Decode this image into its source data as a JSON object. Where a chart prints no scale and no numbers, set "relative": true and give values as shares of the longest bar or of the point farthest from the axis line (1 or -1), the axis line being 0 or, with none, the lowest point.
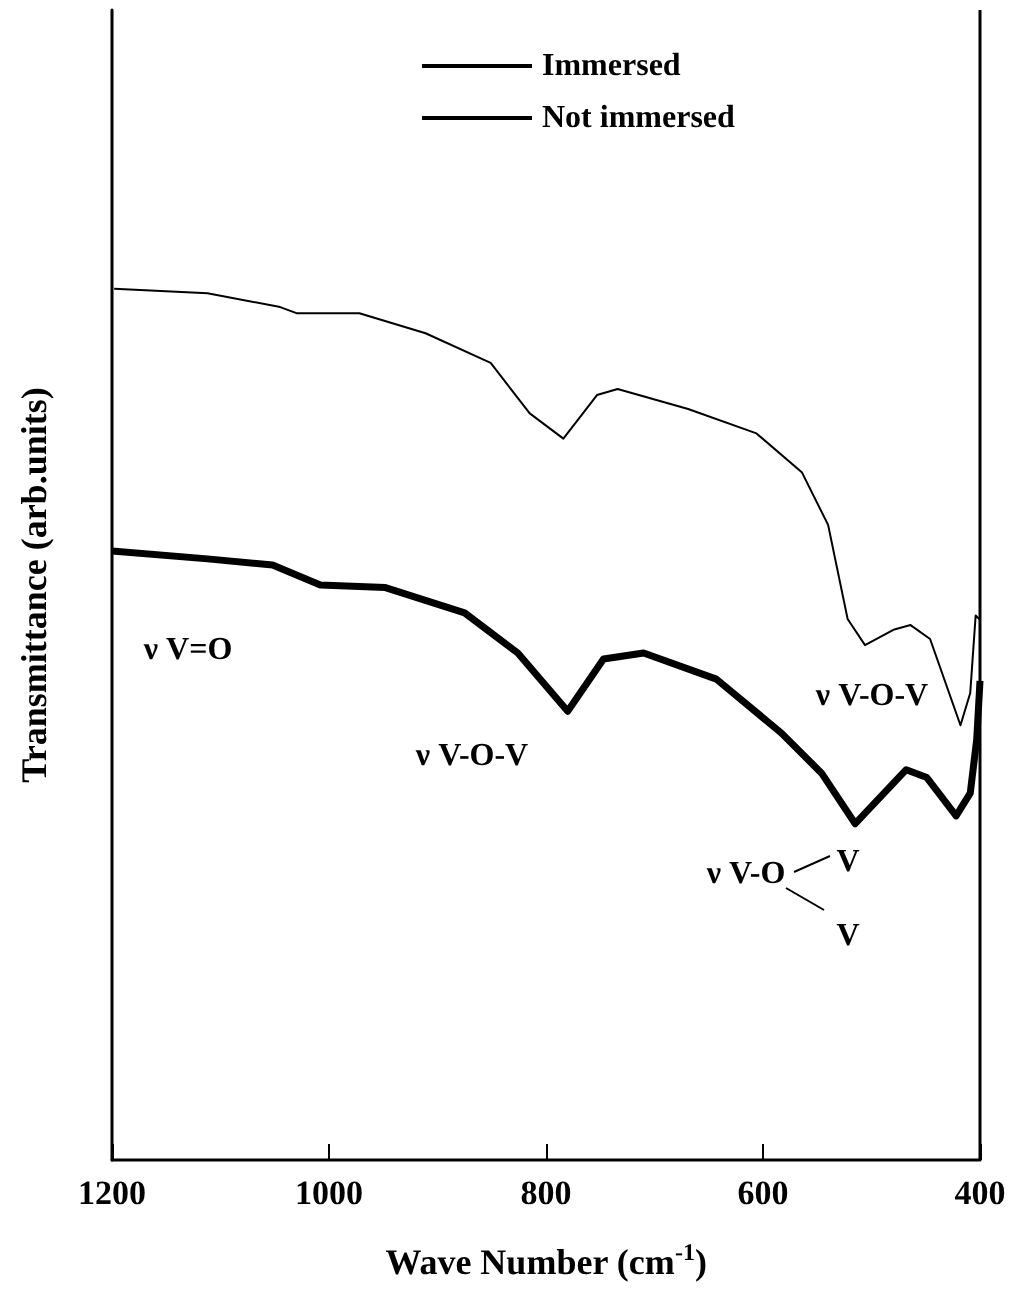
{
  "chart_data": {
    "type": "line",
    "relative": true,
    "xlabel": "Wave Number (cm$^{-1}$)",
    "ylabel": "Transmittance (arb.units)",
    "xlim": [
      1200,
      400
    ],
    "xticks": [
      1200,
      1000,
      800,
      600,
      400
    ],
    "legend": "top",
    "marker": "none",
    "line_style": "solid",
    "grid": false,
    "series": [
      {
        "name": "Immersed",
        "color": "#000000",
        "x": [
          1198,
          1112,
          1045,
          1030,
          972,
          911,
          851,
          815,
          784,
          753,
          734,
          669,
          606,
          564,
          540,
          522,
          506,
          479,
          464,
          446,
          418,
          409,
          404,
          400
        ],
        "values": [
          1.0,
          0.995,
          0.979,
          0.972,
          0.972,
          0.949,
          0.915,
          0.857,
          0.828,
          0.878,
          0.885,
          0.862,
          0.834,
          0.789,
          0.729,
          0.621,
          0.591,
          0.609,
          0.614,
          0.598,
          0.499,
          0.536,
          0.625,
          0.62
        ]
      },
      {
        "name": "Not immersed",
        "color": "#000000",
        "x": [
          1200,
          1112,
          1052,
          1008,
          948,
          875,
          826,
          780,
          747,
          710,
          643,
          583,
          546,
          515,
          468,
          449,
          422,
          409,
          403,
          400
        ],
        "values": [
          0.699,
          0.69,
          0.683,
          0.66,
          0.657,
          0.628,
          0.582,
          0.515,
          0.575,
          0.582,
          0.552,
          0.49,
          0.444,
          0.386,
          0.448,
          0.439,
          0.395,
          0.421,
          0.483,
          0.55
        ]
      }
    ],
    "annotations": [
      "ν V=O",
      "ν V-O-V",
      "ν V-O-V",
      "ν V-O",
      "V",
      "V"
    ]
  }
}
